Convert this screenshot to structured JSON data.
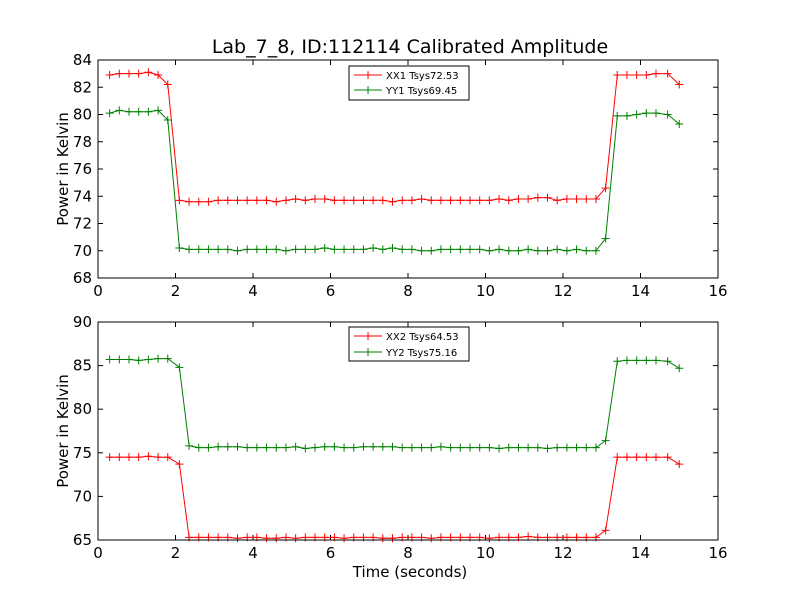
{
  "chart_data": [
    {
      "type": "line",
      "title": "Lab_7_8, ID:112114 Calibrated Amplitude",
      "xlabel": "",
      "ylabel": "Power in Kelvin",
      "xlim": [
        0,
        16
      ],
      "ylim": [
        68,
        84
      ],
      "xticks": [
        0,
        2,
        4,
        6,
        8,
        10,
        12,
        14,
        16
      ],
      "yticks": [
        68,
        70,
        72,
        74,
        76,
        78,
        80,
        82,
        84
      ],
      "grid": false,
      "legend_position": "top-center",
      "x": [
        0.3,
        0.55,
        0.8,
        1.05,
        1.3,
        1.55,
        1.8,
        2.1,
        2.35,
        2.6,
        2.85,
        3.1,
        3.35,
        3.6,
        3.85,
        4.1,
        4.35,
        4.6,
        4.85,
        5.1,
        5.35,
        5.6,
        5.85,
        6.1,
        6.35,
        6.6,
        6.85,
        7.1,
        7.35,
        7.6,
        7.85,
        8.1,
        8.35,
        8.6,
        8.85,
        9.1,
        9.35,
        9.6,
        9.85,
        10.1,
        10.35,
        10.6,
        10.85,
        11.1,
        11.35,
        11.6,
        11.85,
        12.1,
        12.35,
        12.6,
        12.85,
        13.1,
        13.4,
        13.65,
        13.9,
        14.15,
        14.4,
        14.7,
        15.0
      ],
      "series": [
        {
          "name": "XX1 Tsys72.53",
          "color": "#ff0000",
          "values": [
            82.9,
            83.0,
            83.0,
            83.0,
            83.1,
            82.9,
            82.2,
            73.7,
            73.6,
            73.6,
            73.6,
            73.7,
            73.7,
            73.7,
            73.7,
            73.7,
            73.7,
            73.6,
            73.7,
            73.8,
            73.7,
            73.8,
            73.8,
            73.7,
            73.7,
            73.7,
            73.7,
            73.7,
            73.7,
            73.6,
            73.7,
            73.7,
            73.8,
            73.7,
            73.7,
            73.7,
            73.7,
            73.7,
            73.7,
            73.7,
            73.8,
            73.7,
            73.8,
            73.8,
            73.9,
            73.9,
            73.7,
            73.8,
            73.8,
            73.8,
            73.8,
            74.6,
            82.9,
            82.9,
            82.9,
            82.9,
            83.0,
            83.0,
            82.2
          ]
        },
        {
          "name": "YY1 Tsys69.45",
          "color": "#008000",
          "values": [
            80.1,
            80.3,
            80.2,
            80.2,
            80.2,
            80.3,
            79.6,
            70.2,
            70.1,
            70.1,
            70.1,
            70.1,
            70.1,
            70.0,
            70.1,
            70.1,
            70.1,
            70.1,
            70.0,
            70.1,
            70.1,
            70.1,
            70.2,
            70.1,
            70.1,
            70.1,
            70.1,
            70.2,
            70.1,
            70.2,
            70.1,
            70.1,
            70.0,
            70.0,
            70.1,
            70.1,
            70.1,
            70.1,
            70.1,
            70.0,
            70.1,
            70.0,
            70.0,
            70.1,
            70.0,
            70.0,
            70.1,
            70.0,
            70.1,
            70.0,
            70.0,
            70.9,
            79.9,
            79.9,
            80.0,
            80.1,
            80.1,
            80.0,
            79.3
          ]
        }
      ]
    },
    {
      "type": "line",
      "title": "",
      "xlabel": "Time (seconds)",
      "ylabel": "Power in Kelvin",
      "xlim": [
        0,
        16
      ],
      "ylim": [
        65,
        90
      ],
      "xticks": [
        0,
        2,
        4,
        6,
        8,
        10,
        12,
        14,
        16
      ],
      "yticks": [
        65,
        70,
        75,
        80,
        85,
        90
      ],
      "grid": false,
      "legend_position": "top-center",
      "x": [
        0.3,
        0.55,
        0.8,
        1.05,
        1.3,
        1.55,
        1.8,
        2.1,
        2.35,
        2.6,
        2.85,
        3.1,
        3.35,
        3.6,
        3.85,
        4.1,
        4.35,
        4.6,
        4.85,
        5.1,
        5.35,
        5.6,
        5.85,
        6.1,
        6.35,
        6.6,
        6.85,
        7.1,
        7.35,
        7.6,
        7.85,
        8.1,
        8.35,
        8.6,
        8.85,
        9.1,
        9.35,
        9.6,
        9.85,
        10.1,
        10.35,
        10.6,
        10.85,
        11.1,
        11.35,
        11.6,
        11.85,
        12.1,
        12.35,
        12.6,
        12.85,
        13.1,
        13.4,
        13.65,
        13.9,
        14.15,
        14.4,
        14.7,
        15.0
      ],
      "series": [
        {
          "name": "XX2 Tsys64.53",
          "color": "#ff0000",
          "values": [
            74.5,
            74.5,
            74.5,
            74.5,
            74.6,
            74.5,
            74.5,
            73.7,
            65.3,
            65.3,
            65.3,
            65.3,
            65.3,
            65.2,
            65.3,
            65.3,
            65.2,
            65.2,
            65.3,
            65.2,
            65.3,
            65.3,
            65.3,
            65.3,
            65.2,
            65.3,
            65.3,
            65.3,
            65.2,
            65.2,
            65.3,
            65.3,
            65.3,
            65.2,
            65.3,
            65.3,
            65.3,
            65.3,
            65.3,
            65.2,
            65.3,
            65.3,
            65.3,
            65.4,
            65.3,
            65.3,
            65.3,
            65.3,
            65.3,
            65.3,
            65.3,
            66.1,
            74.5,
            74.5,
            74.5,
            74.5,
            74.5,
            74.5,
            73.7
          ]
        },
        {
          "name": "YY2 Tsys75.16",
          "color": "#008000",
          "values": [
            85.7,
            85.7,
            85.7,
            85.6,
            85.7,
            85.8,
            85.8,
            84.8,
            75.8,
            75.6,
            75.6,
            75.7,
            75.7,
            75.7,
            75.6,
            75.6,
            75.6,
            75.6,
            75.6,
            75.7,
            75.5,
            75.6,
            75.7,
            75.7,
            75.6,
            75.6,
            75.7,
            75.7,
            75.7,
            75.7,
            75.6,
            75.6,
            75.6,
            75.6,
            75.7,
            75.6,
            75.6,
            75.6,
            75.6,
            75.6,
            75.5,
            75.6,
            75.6,
            75.6,
            75.6,
            75.5,
            75.6,
            75.6,
            75.6,
            75.6,
            75.6,
            76.4,
            85.5,
            85.6,
            85.6,
            85.6,
            85.6,
            85.5,
            84.7
          ]
        }
      ]
    }
  ]
}
